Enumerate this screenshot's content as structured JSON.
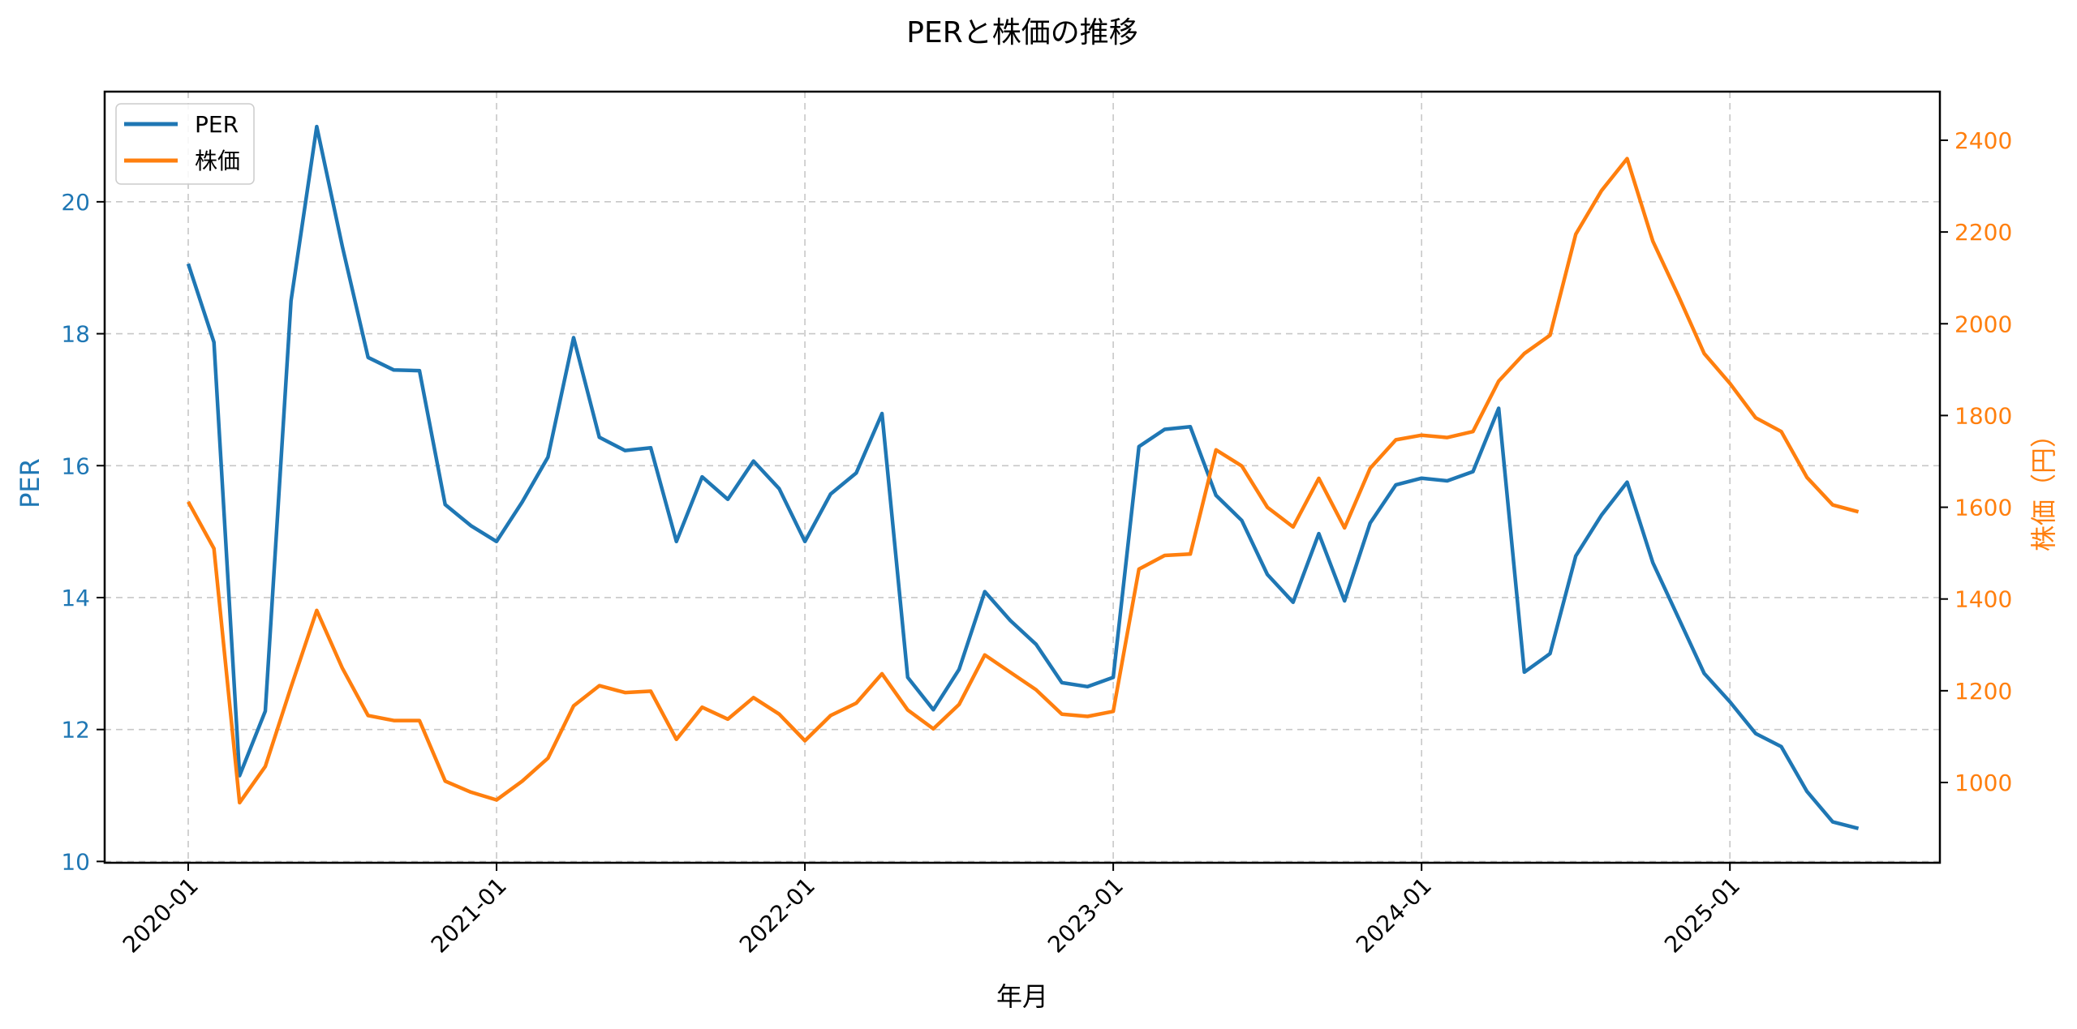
{
  "chart_data": {
    "type": "line",
    "title": "PERと株価の推移",
    "xlabel": "年月",
    "ylabel": "PER",
    "ylabel_right": "株価（円）",
    "x": [
      "2020-01",
      "2020-02",
      "2020-03",
      "2020-04",
      "2020-05",
      "2020-06",
      "2020-07",
      "2020-08",
      "2020-09",
      "2020-10",
      "2020-11",
      "2020-12",
      "2021-01",
      "2021-02",
      "2021-03",
      "2021-04",
      "2021-05",
      "2021-06",
      "2021-07",
      "2021-08",
      "2021-09",
      "2021-10",
      "2021-11",
      "2021-12",
      "2022-01",
      "2022-02",
      "2022-03",
      "2022-04",
      "2022-05",
      "2022-06",
      "2022-07",
      "2022-08",
      "2022-09",
      "2022-10",
      "2022-11",
      "2022-12",
      "2023-01",
      "2023-02",
      "2023-03",
      "2023-04",
      "2023-05",
      "2023-06",
      "2023-07",
      "2023-08",
      "2023-09",
      "2023-10",
      "2023-11",
      "2023-12",
      "2024-01",
      "2024-02",
      "2024-03",
      "2024-04",
      "2024-05",
      "2024-06",
      "2024-07",
      "2024-08",
      "2024-09",
      "2024-10",
      "2024-11",
      "2024-12",
      "2025-01",
      "2025-02",
      "2025-03",
      "2025-04",
      "2025-05",
      "2025-06"
    ],
    "xticks": [
      "2020-01",
      "2021-01",
      "2022-01",
      "2023-01",
      "2024-01",
      "2025-01"
    ],
    "series": [
      {
        "name": "PER",
        "axis": "left",
        "color": "#1f77b4",
        "values": [
          19.06,
          17.87,
          11.3,
          12.28,
          18.5,
          21.14,
          19.32,
          17.64,
          17.45,
          17.44,
          15.41,
          15.09,
          14.85,
          15.45,
          16.13,
          17.94,
          16.43,
          16.23,
          16.27,
          14.85,
          15.83,
          15.49,
          16.07,
          15.65,
          14.85,
          15.57,
          15.89,
          16.79,
          12.79,
          12.3,
          12.91,
          14.09,
          13.65,
          13.29,
          12.71,
          12.65,
          12.79,
          16.29,
          16.55,
          16.59,
          15.55,
          15.17,
          14.35,
          13.93,
          14.97,
          13.95,
          15.13,
          15.71,
          15.81,
          15.77,
          15.91,
          16.87,
          12.87,
          13.15,
          14.63,
          15.25,
          15.75,
          14.53,
          13.69,
          12.85,
          12.42,
          11.94,
          11.74,
          11.06,
          10.6,
          10.5
        ]
      },
      {
        "name": "株価",
        "axis": "right",
        "color": "#ff7f0e",
        "values": [
          1612,
          1510,
          956,
          1035,
          1208,
          1375,
          1249,
          1146,
          1135,
          1135,
          1003,
          979,
          962,
          1003,
          1053,
          1167,
          1211,
          1196,
          1199,
          1094,
          1164,
          1138,
          1185,
          1149,
          1091,
          1146,
          1173,
          1237,
          1158,
          1117,
          1170,
          1278,
          1240,
          1202,
          1149,
          1144,
          1155,
          1465,
          1495,
          1498,
          1725,
          1690,
          1600,
          1557,
          1663,
          1555,
          1685,
          1747,
          1757,
          1752,
          1765,
          1875,
          1935,
          1975,
          2195,
          2290,
          2360,
          2180,
          2060,
          1935,
          1870,
          1795,
          1765,
          1665,
          1605,
          1590
        ]
      }
    ],
    "ylim": [
      9.98,
      21.67
    ],
    "ylim_right": [
      825,
      2506
    ],
    "yticks": [
      10,
      12,
      14,
      16,
      18,
      20
    ],
    "yticks_right": [
      1000,
      1200,
      1400,
      1600,
      1800,
      2000,
      2200,
      2400
    ],
    "grid": true,
    "legend_position": "upper left",
    "colors": {
      "left_axis": "#1f77b4",
      "right_axis": "#ff7f0e",
      "grid": "#b0b0b0"
    }
  }
}
